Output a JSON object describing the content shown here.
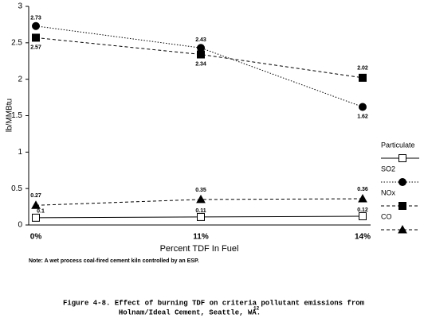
{
  "chart_data": {
    "type": "line",
    "y_label": "lb/MMBtu",
    "x_label": "Percent TDF In Fuel",
    "note": "Note:  A wet process coal-fired cement kiln controlled by an ESP.",
    "caption": [
      "Figure 4-8.  Effect of burning TDF on criteria pollutant emissions from",
      "Holnam/Ideal Cement, Seattle, WA."
    ],
    "caption_superscript": "12",
    "categories": [
      "0%",
      "11%",
      "14%"
    ],
    "ylim": [
      0,
      3
    ],
    "yticks": [
      0,
      0.5,
      1,
      1.5,
      2,
      2.5,
      3
    ],
    "series": [
      {
        "name": "Particulate",
        "color": "#000000",
        "line_style": "solid",
        "marker": "open-square",
        "values": [
          0.1,
          0.11,
          0.12
        ]
      },
      {
        "name": "SO2",
        "color": "#000000",
        "line_style": "dotted",
        "marker": "circle",
        "values": [
          2.73,
          2.43,
          1.62
        ]
      },
      {
        "name": "NOx",
        "color": "#000000",
        "line_style": "dashed",
        "marker": "square",
        "values": [
          2.57,
          2.34,
          2.02
        ]
      },
      {
        "name": "CO",
        "color": "#000000",
        "line_style": "dashed",
        "marker": "triangle",
        "values": [
          0.27,
          0.35,
          0.36
        ]
      }
    ]
  }
}
